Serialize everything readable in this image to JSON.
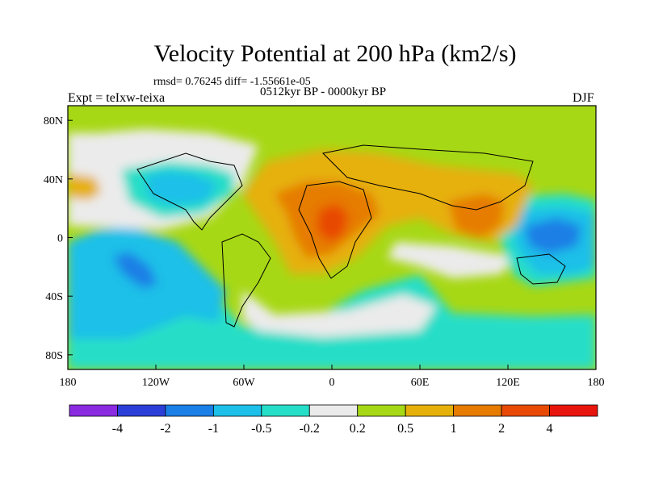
{
  "header": {
    "title": "Velocity Potential at 200 hPa (km2/s)",
    "stats": "rmsd= 0.76245 diff= -1.55661e-05",
    "subtitle": "0512kyr BP - 0000kyr BP",
    "expt": "Expt = teIxw-teixa",
    "season": "DJF"
  },
  "map": {
    "projection": "cylindrical equidistant",
    "lon_range": [
      -180,
      180
    ],
    "lat_range": [
      -90,
      90
    ],
    "x_ticks": [
      {
        "lon": -180,
        "label": "180"
      },
      {
        "lon": -120,
        "label": "120W"
      },
      {
        "lon": -60,
        "label": "60W"
      },
      {
        "lon": 0,
        "label": "0"
      },
      {
        "lon": 60,
        "label": "60E"
      },
      {
        "lon": 120,
        "label": "120E"
      },
      {
        "lon": 180,
        "label": "180"
      }
    ],
    "y_ticks": [
      {
        "lat": 80,
        "label": "80N"
      },
      {
        "lat": 40,
        "label": "40N"
      },
      {
        "lat": 0,
        "label": "0"
      },
      {
        "lat": -40,
        "label": "40S"
      },
      {
        "lat": -80,
        "label": "80S"
      }
    ]
  },
  "colorbar": {
    "levels": [
      "-4",
      "-2",
      "-1",
      "-0.5",
      "-0.2",
      "0.2",
      "0.5",
      "1",
      "2",
      "4"
    ],
    "colors": [
      "#8a2be2",
      "#2b3fd8",
      "#1a7fe6",
      "#1cc0e8",
      "#25dec8",
      "#ebebeb",
      "#a7d815",
      "#e6b00a",
      "#e67b00",
      "#e84a05",
      "#e8150d"
    ]
  }
}
